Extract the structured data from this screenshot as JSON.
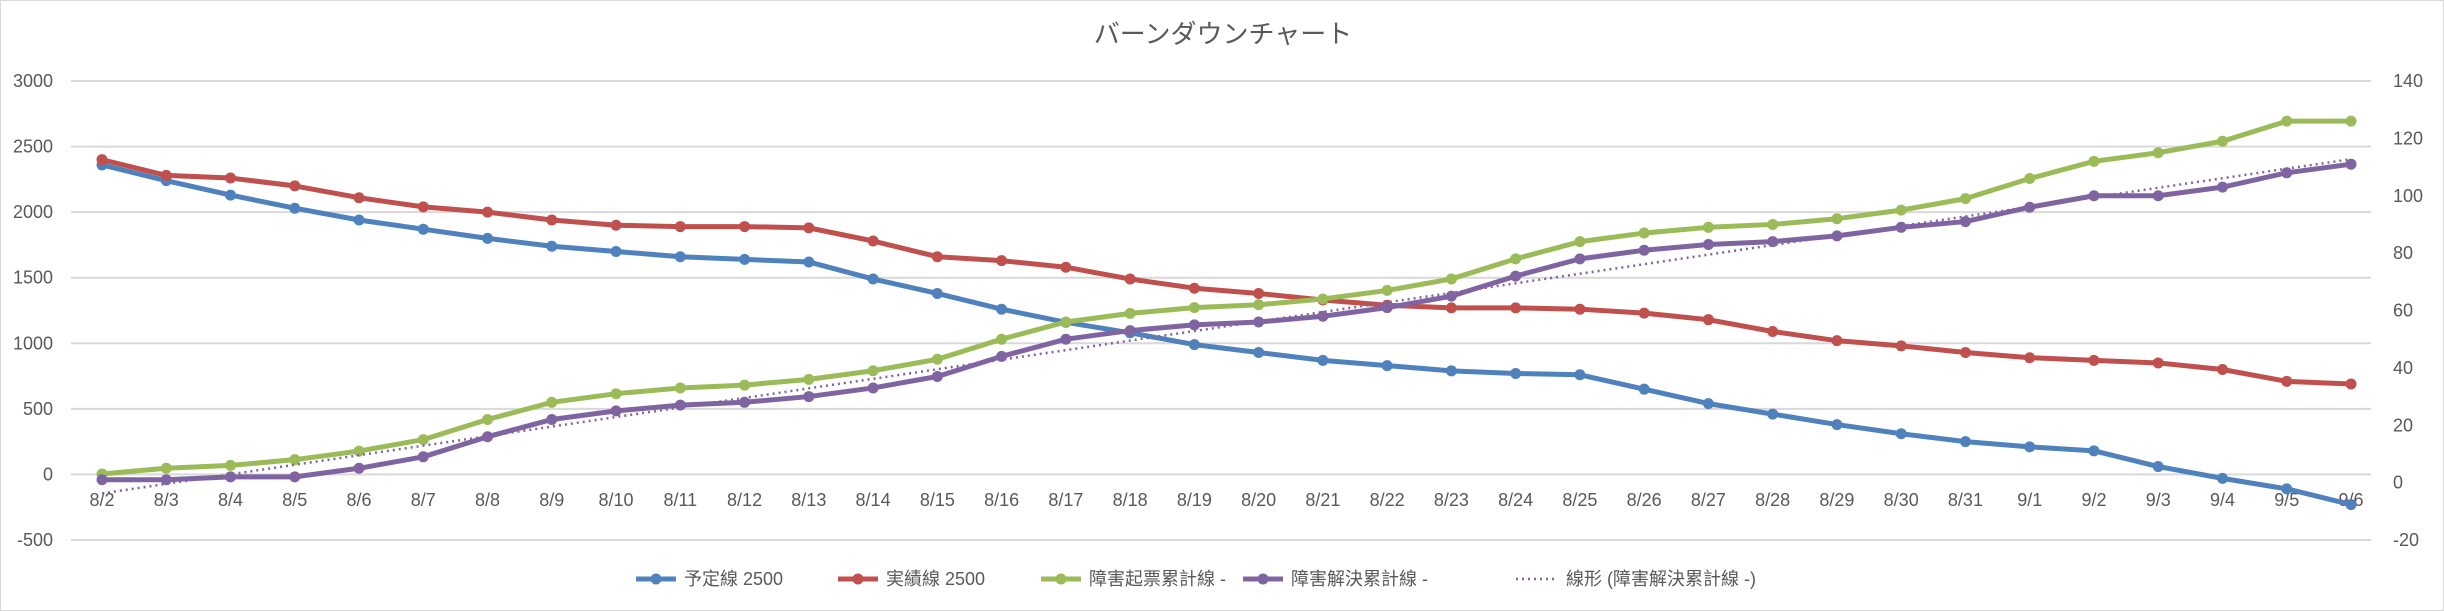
{
  "chart_data": {
    "type": "line",
    "title": "バーンダウンチャート",
    "xlabel": "",
    "ylabel": "",
    "categories": [
      "8/2",
      "8/3",
      "8/4",
      "8/5",
      "8/6",
      "8/7",
      "8/8",
      "8/9",
      "8/10",
      "8/11",
      "8/12",
      "8/13",
      "8/14",
      "8/15",
      "8/16",
      "8/17",
      "8/18",
      "8/19",
      "8/20",
      "8/21",
      "8/22",
      "8/23",
      "8/24",
      "8/25",
      "8/26",
      "8/27",
      "8/28",
      "8/29",
      "8/30",
      "8/31",
      "9/1",
      "9/2",
      "9/3",
      "9/4",
      "9/5",
      "9/6"
    ],
    "ylim": [
      -500,
      3000
    ],
    "yticks": [
      -500,
      0,
      500,
      1000,
      1500,
      2000,
      2500,
      3000
    ],
    "y2lim": [
      -20,
      140
    ],
    "y2ticks": [
      -20,
      0,
      20,
      40,
      60,
      80,
      100,
      120,
      140
    ],
    "grid": true,
    "legend_position": "bottom",
    "series": [
      {
        "name": "予定線 2500",
        "axis": "left",
        "color": "#4f81bd",
        "values": [
          2360,
          2240,
          2130,
          2030,
          1940,
          1870,
          1800,
          1740,
          1700,
          1660,
          1640,
          1620,
          1490,
          1380,
          1260,
          1160,
          1080,
          990,
          930,
          870,
          830,
          790,
          770,
          760,
          650,
          540,
          460,
          380,
          310,
          250,
          210,
          180,
          60,
          -30,
          -110,
          -230
        ]
      },
      {
        "name": "実績線 2500",
        "axis": "left",
        "color": "#c0504d",
        "values": [
          2400,
          2280,
          2260,
          2200,
          2110,
          2040,
          2000,
          1940,
          1900,
          1890,
          1890,
          1880,
          1780,
          1660,
          1630,
          1580,
          1490,
          1420,
          1380,
          1330,
          1290,
          1270,
          1270,
          1260,
          1230,
          1180,
          1090,
          1020,
          980,
          930,
          890,
          870,
          850,
          800,
          710,
          690
        ]
      },
      {
        "name": "障害起票累計線 -",
        "axis": "right",
        "color": "#9bbb59",
        "values": [
          3,
          5,
          6,
          8,
          11,
          15,
          22,
          28,
          31,
          33,
          34,
          36,
          39,
          43,
          50,
          56,
          59,
          61,
          62,
          64,
          67,
          71,
          78,
          84,
          87,
          89,
          90,
          92,
          95,
          99,
          106,
          112,
          115,
          119,
          126,
          126
        ]
      },
      {
        "name": "障害解決累計線 -",
        "axis": "right",
        "color": "#8064a2",
        "values": [
          1,
          1,
          2,
          2,
          5,
          9,
          16,
          22,
          25,
          27,
          28,
          30,
          33,
          37,
          44,
          50,
          53,
          55,
          56,
          58,
          61,
          65,
          72,
          78,
          81,
          83,
          84,
          86,
          89,
          91,
          96,
          100,
          100,
          103,
          108,
          111
        ]
      }
    ],
    "trendline": {
      "name": "線形 (障害解決累計線 -)",
      "type": "linear",
      "of_series": "障害解決累計線 -",
      "axis": "right",
      "color": "#8064a2",
      "style": "dotted"
    }
  }
}
